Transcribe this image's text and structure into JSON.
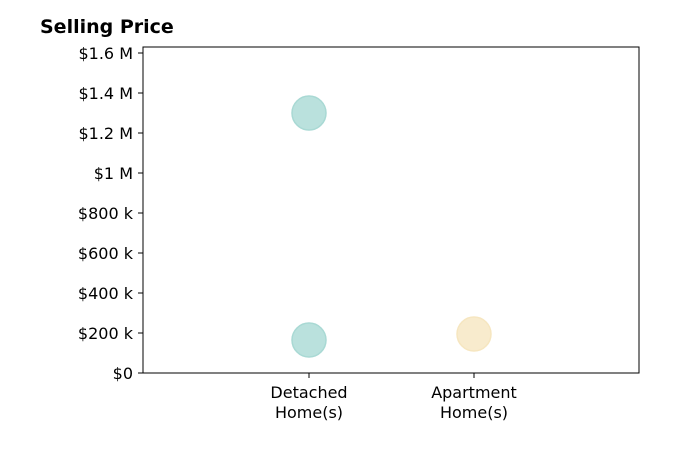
{
  "chart_data": {
    "type": "scatter",
    "title": "Selling Price",
    "categories": [
      "Detached\nHome(s)",
      "Apartment\nHome(s)"
    ],
    "y_ticks": [
      "$0",
      "$200 k",
      "$400 k",
      "$600 k",
      "$800 k",
      "$1 M",
      "$1.2 M",
      "$1.4 M",
      "$1.6 M"
    ],
    "ylim": [
      0,
      1620000
    ],
    "series": [
      {
        "category": "Detached\nHome(s)",
        "values": [
          1300000,
          165000
        ],
        "color": "#a9d9d4"
      },
      {
        "category": "Apartment\nHome(s)",
        "values": [
          195000
        ],
        "color": "#f6e6c0"
      }
    ],
    "grid": false
  }
}
